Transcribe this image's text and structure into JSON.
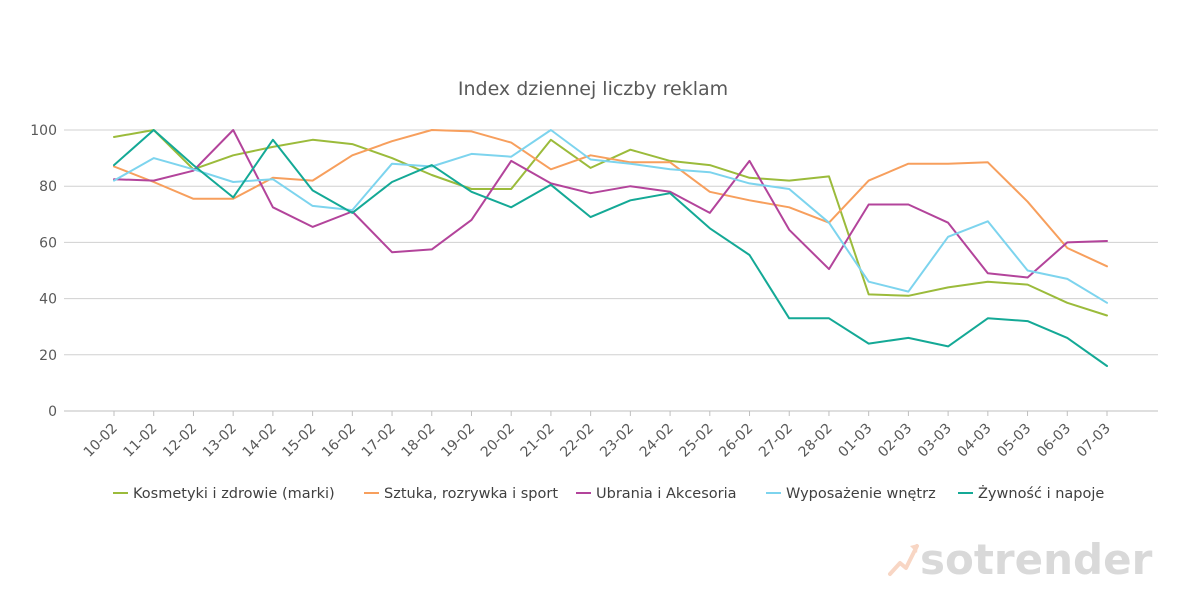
{
  "chart_data": {
    "type": "line",
    "title": "Index dziennej liczby reklam",
    "xlabel": "",
    "ylabel": "",
    "ylim": [
      0,
      100
    ],
    "yticks": [
      0,
      20,
      40,
      60,
      80,
      100
    ],
    "grid": true,
    "legend_position": "bottom",
    "categories": [
      "10-02",
      "11-02",
      "12-02",
      "13-02",
      "14-02",
      "15-02",
      "16-02",
      "17-02",
      "18-02",
      "19-02",
      "20-02",
      "21-02",
      "22-02",
      "23-02",
      "24-02",
      "25-02",
      "26-02",
      "27-02",
      "28-02",
      "01-03",
      "02-03",
      "03-03",
      "04-03",
      "05-03",
      "06-03",
      "07-03"
    ],
    "series": [
      {
        "name": "Kosmetyki i zdrowie (marki)",
        "color": "#9bbb3b",
        "values": [
          97.5,
          100,
          86,
          91,
          94,
          96.5,
          95,
          90,
          84,
          79,
          79,
          96.5,
          86.5,
          93,
          89,
          87.5,
          83,
          82,
          83.5,
          41.5,
          41,
          44,
          46,
          45,
          38.5,
          34
        ]
      },
      {
        "name": "Sztuka, rozrywka i sport",
        "color": "#f79f5d",
        "values": [
          87,
          81.5,
          75.5,
          75.5,
          83,
          82,
          91,
          96,
          100,
          99.5,
          95.5,
          86,
          91,
          88.5,
          88.5,
          78,
          75,
          72.5,
          67,
          82,
          88,
          88,
          88.5,
          74.5,
          58,
          51.5
        ]
      },
      {
        "name": "Ubrania i Akcesoria",
        "color": "#b3449b",
        "values": [
          82.5,
          82,
          85.5,
          100,
          72.5,
          65.5,
          71,
          56.5,
          57.5,
          68,
          89,
          81,
          77.5,
          80,
          78,
          70.5,
          89,
          64.5,
          50.5,
          73.5,
          73.5,
          67,
          49,
          47.5,
          60,
          60.5
        ]
      },
      {
        "name": "Wyposażenie wnętrz",
        "color": "#7dd4ee",
        "values": [
          82,
          90,
          86,
          81.5,
          82.5,
          73,
          71.5,
          88,
          87,
          91.5,
          90.5,
          100,
          89.5,
          88,
          86,
          85,
          81,
          79,
          67,
          46,
          42.5,
          62,
          67.5,
          50,
          47,
          38.5
        ]
      },
      {
        "name": "Żywność i napoje",
        "color": "#14a996",
        "values": [
          87.5,
          100,
          87.5,
          76,
          96.5,
          78.5,
          70.5,
          81.5,
          87.5,
          78,
          72.5,
          80.5,
          69,
          75,
          77.5,
          65,
          55.5,
          33,
          33,
          24,
          26,
          23,
          33,
          32,
          26,
          16
        ]
      }
    ]
  },
  "watermark": {
    "text": "sotrender",
    "icon": "sotrender-logo-icon"
  }
}
